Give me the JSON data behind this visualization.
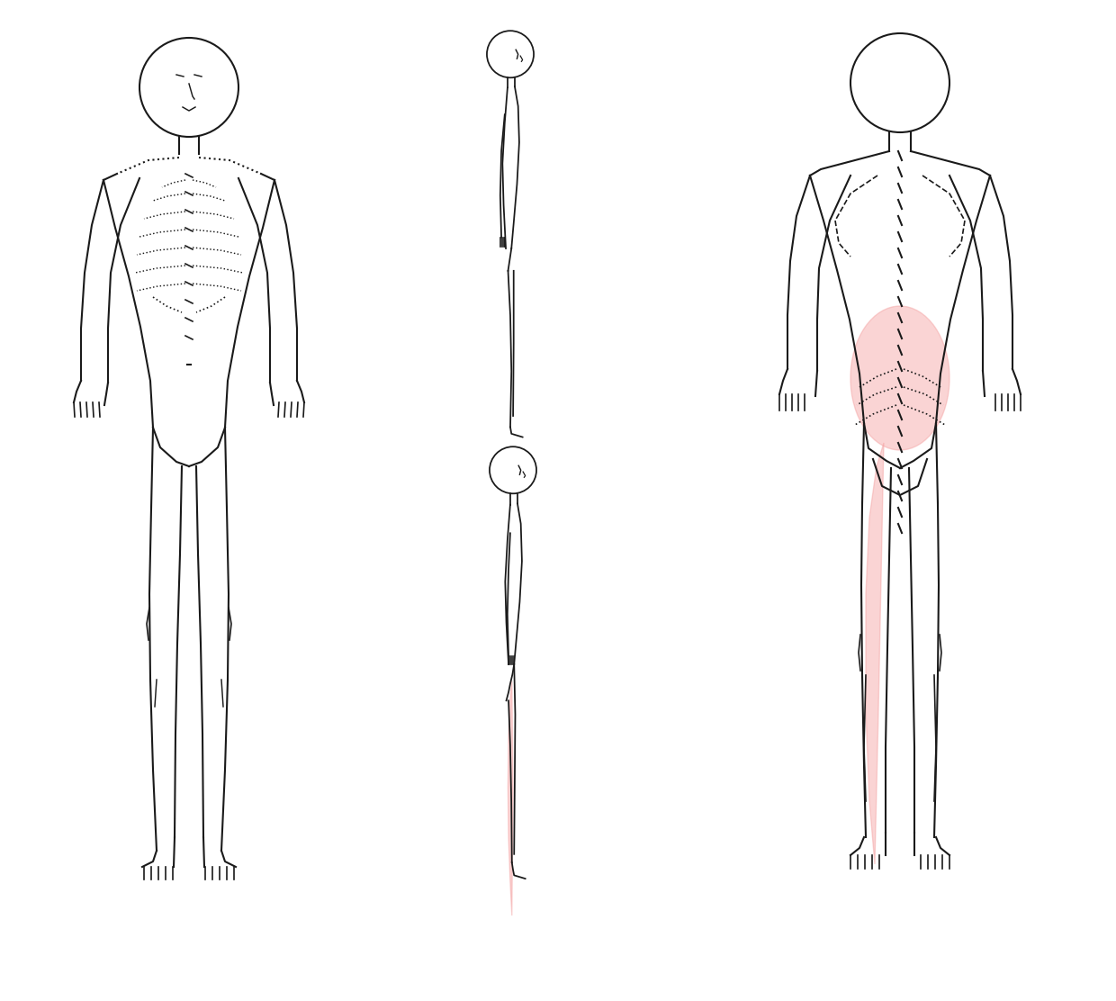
{
  "background_color": "#ffffff",
  "pain_color": "#f4a0a0",
  "pain_alpha": 0.45,
  "line_color": "#1a1a1a",
  "line_width": 1.5,
  "fig_width": 12.4,
  "fig_height": 11.12
}
